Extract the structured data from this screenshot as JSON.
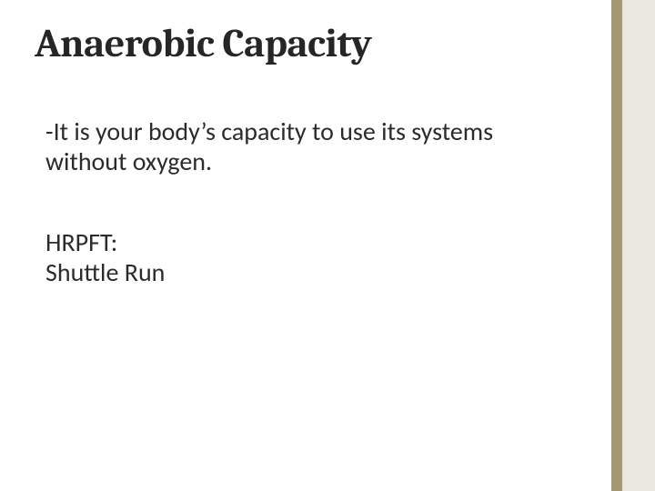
{
  "slide": {
    "title": "Anaerobic Capacity",
    "body": {
      "definition": "-It is your body’s capacity to use its systems without oxygen.",
      "hrpft_label": "HRPFT:",
      "hrpft_item": "Shuttle Run"
    },
    "style": {
      "accent_thin_color": "#a39871",
      "accent_wide_color": "#e9e7df",
      "title_color": "#262626",
      "body_color": "#2b2b2b",
      "background_color": "#ffffff",
      "title_fontsize": 44,
      "body_fontsize": 28,
      "accent_thin_width": 12,
      "accent_wide_width": 36
    }
  }
}
